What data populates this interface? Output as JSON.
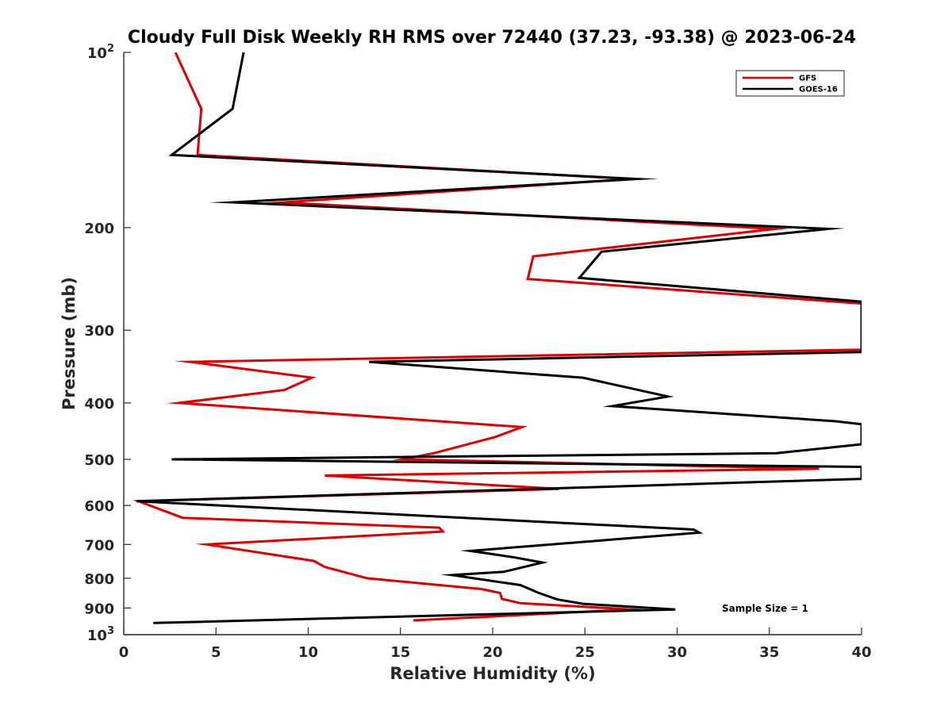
{
  "chart_data": {
    "type": "line",
    "title": "Cloudy Full Disk Weekly RH RMS over 72440 (37.23, -93.38) @ 2023-06-24",
    "xlabel": "Relative Humidity (%)",
    "ylabel": "Pressure (mb)",
    "xlim": [
      0,
      40
    ],
    "ylim": [
      100,
      1000
    ],
    "yscale": "log",
    "y_reversed": true,
    "x_ticks": [
      0,
      5,
      10,
      15,
      20,
      25,
      30,
      35,
      40
    ],
    "y_ticks": [
      {
        "value": 100,
        "base": "10",
        "exp": "2"
      },
      {
        "value": 200,
        "label": "200"
      },
      {
        "value": 300,
        "label": "300"
      },
      {
        "value": 400,
        "label": "400"
      },
      {
        "value": 500,
        "label": "500"
      },
      {
        "value": 600,
        "label": "600"
      },
      {
        "value": 700,
        "label": "700"
      },
      {
        "value": 800,
        "label": "800"
      },
      {
        "value": 900,
        "label": "900"
      },
      {
        "value": 1000,
        "base": "10",
        "exp": "3"
      }
    ],
    "legend": {
      "position": "top-right"
    },
    "annotation": "Sample Size = 1",
    "series": [
      {
        "name": "GFS",
        "color": "#e00000",
        "points": [
          [
            2.8,
            100
          ],
          [
            4.2,
            125
          ],
          [
            4.0,
            150
          ],
          [
            27.5,
            165
          ],
          [
            8.6,
            181
          ],
          [
            35.3,
            201
          ],
          [
            22.2,
            224
          ],
          [
            21.9,
            245
          ],
          [
            40.0,
            270
          ],
          [
            40.0,
            324
          ],
          [
            3.6,
            340
          ],
          [
            10.2,
            362
          ],
          [
            8.7,
            380
          ],
          [
            3.0,
            400
          ],
          [
            21.6,
            440
          ],
          [
            20.1,
            458
          ],
          [
            16.8,
            488
          ],
          [
            15.1,
            500
          ],
          [
            37.7,
            519
          ],
          [
            10.9,
            533
          ],
          [
            23.6,
            562
          ],
          [
            0.8,
            590
          ],
          [
            3.2,
            630
          ],
          [
            17.1,
            655
          ],
          [
            17.3,
            665
          ],
          [
            4.5,
            700
          ],
          [
            10.3,
            747
          ],
          [
            10.9,
            765
          ],
          [
            13.2,
            800
          ],
          [
            19.4,
            835
          ],
          [
            20.4,
            848
          ],
          [
            20.5,
            868
          ],
          [
            21.5,
            883
          ],
          [
            27.5,
            905
          ],
          [
            15.7,
            945
          ]
        ]
      },
      {
        "name": "GOES-16",
        "color": "#000000",
        "points": [
          [
            6.5,
            100
          ],
          [
            5.9,
            125
          ],
          [
            2.6,
            150
          ],
          [
            27.8,
            165
          ],
          [
            5.9,
            181
          ],
          [
            38.2,
            201
          ],
          [
            25.9,
            220
          ],
          [
            24.7,
            244
          ],
          [
            40.0,
            268
          ],
          [
            40.0,
            327
          ],
          [
            13.3,
            340
          ],
          [
            24.9,
            362
          ],
          [
            29.5,
            390
          ],
          [
            26.5,
            405
          ],
          [
            38.6,
            430
          ],
          [
            40.0,
            435
          ],
          [
            40.0,
            471
          ],
          [
            35.4,
            488
          ],
          [
            2.6,
            500
          ],
          [
            40.0,
            515
          ],
          [
            40.0,
            540
          ],
          [
            0.7,
            590
          ],
          [
            30.9,
            660
          ],
          [
            31.2,
            668
          ],
          [
            18.8,
            718
          ],
          [
            21.2,
            737
          ],
          [
            22.7,
            752
          ],
          [
            20.6,
            780
          ],
          [
            17.8,
            790
          ],
          [
            21.5,
            822
          ],
          [
            22.5,
            848
          ],
          [
            23.5,
            870
          ],
          [
            24.9,
            885
          ],
          [
            29.9,
            905
          ],
          [
            1.6,
            955
          ]
        ]
      }
    ]
  }
}
